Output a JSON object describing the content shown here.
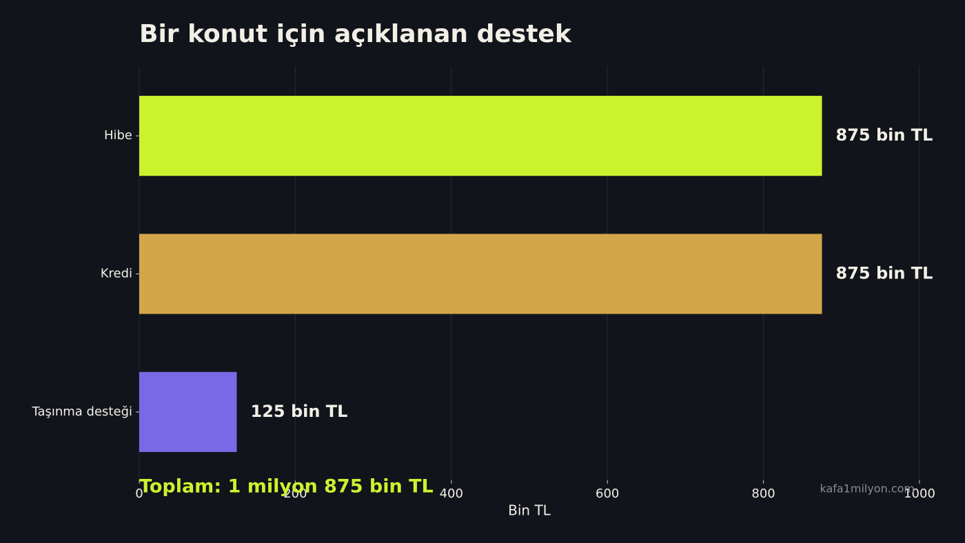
{
  "chart_data": {
    "type": "barh",
    "title": "Bir konut için açıklanan destek",
    "categories": [
      "Hibe",
      "Kredi",
      "Taşınma desteği"
    ],
    "values": [
      875,
      875,
      125
    ],
    "value_labels": [
      "875 bin TL",
      "875 bin TL",
      "125 bin TL"
    ],
    "colors": [
      "#ccf22e",
      "#d4a64a",
      "#7b68e6"
    ],
    "xlim": [
      0,
      1000
    ],
    "xticks": [
      0,
      200,
      400,
      600,
      800,
      1000
    ],
    "xlabel": "Bin TL",
    "grid": true,
    "annotation": "Toplam: 1 milyon 875 bin TL",
    "watermark": "kafa1milyon.com"
  }
}
